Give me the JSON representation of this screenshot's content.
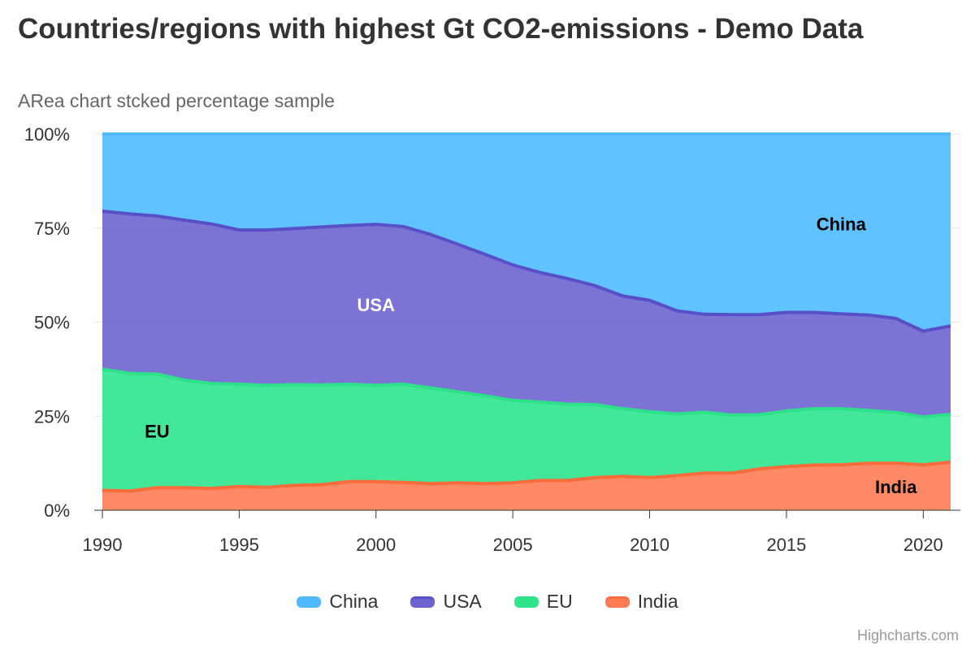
{
  "title": "Countries/regions with highest Gt CO2-emissions - Demo Data",
  "subtitle": "ARea chart stcked percentage sample",
  "credits": "Highcharts.com",
  "chart_data": {
    "type": "area",
    "stacking": "percent",
    "title": "Countries/regions with highest Gt CO2-emissions - Demo Data",
    "subtitle": "ARea chart stcked percentage sample",
    "x": [
      1990,
      1991,
      1992,
      1993,
      1994,
      1995,
      1996,
      1997,
      1998,
      1999,
      2000,
      2001,
      2002,
      2003,
      2004,
      2005,
      2006,
      2007,
      2008,
      2009,
      2010,
      2011,
      2012,
      2013,
      2014,
      2015,
      2016,
      2017,
      2018,
      2019,
      2020,
      2021
    ],
    "x_ticks": [
      "1990",
      "1995",
      "2000",
      "2005",
      "2010",
      "2015",
      "2020"
    ],
    "y_ticks": [
      "0%",
      "25%",
      "50%",
      "75%",
      "100%"
    ],
    "ylim": [
      0,
      100
    ],
    "grid": true,
    "legend_position": "bottom-center",
    "series": [
      {
        "name": "China",
        "color": "#4fbbfe",
        "line_color": "#4fbbfe",
        "values": [
          20.5,
          21.2,
          21.8,
          22.9,
          23.9,
          25.5,
          25.5,
          25.1,
          24.7,
          24.3,
          24.0,
          24.6,
          26.7,
          29.3,
          32.0,
          34.8,
          36.8,
          38.4,
          40.3,
          43.0,
          44.2,
          47.0,
          47.9,
          48.0,
          48.0,
          47.4,
          47.4,
          47.8,
          48.1,
          49.0,
          52.4,
          51.0
        ]
      },
      {
        "name": "USA",
        "color": "#6f64cf",
        "line_color": "#5650c9",
        "values": [
          42.0,
          42.4,
          42.0,
          42.5,
          42.4,
          41.0,
          41.3,
          41.5,
          42.0,
          42.2,
          42.8,
          41.9,
          40.8,
          39.2,
          37.6,
          36.0,
          34.4,
          33.4,
          31.6,
          30.0,
          29.6,
          27.4,
          26.0,
          26.7,
          26.6,
          26.2,
          25.6,
          25.2,
          25.4,
          25.0,
          22.8,
          23.5
        ]
      },
      {
        "name": "EU",
        "color": "#2ee58c",
        "line_color": "#2de08a",
        "values": [
          32.2,
          31.3,
          30.2,
          28.6,
          27.9,
          27.2,
          27.1,
          26.8,
          26.5,
          25.9,
          25.6,
          26.1,
          25.4,
          24.2,
          23.3,
          21.9,
          20.9,
          20.3,
          19.4,
          18.0,
          17.5,
          16.4,
          16.2,
          15.4,
          14.4,
          14.8,
          15.0,
          14.9,
          14.0,
          13.5,
          12.7,
          12.7
        ]
      },
      {
        "name": "India",
        "color": "#ff7b54",
        "line_color": "#fa6c3c",
        "values": [
          5.3,
          5.1,
          6.0,
          6.0,
          5.8,
          6.3,
          6.1,
          6.6,
          6.8,
          7.6,
          7.6,
          7.4,
          7.1,
          7.3,
          7.1,
          7.3,
          7.9,
          7.9,
          8.7,
          9.0,
          8.7,
          9.2,
          9.9,
          9.9,
          11.0,
          11.6,
          12.0,
          12.1,
          12.5,
          12.5,
          12.1,
          12.8
        ]
      }
    ],
    "annotations": [
      {
        "text": "China",
        "series": "China",
        "color": "#000000"
      },
      {
        "text": "USA",
        "series": "USA",
        "color": "#ffffff"
      },
      {
        "text": "EU",
        "series": "EU",
        "color": "#000000"
      },
      {
        "text": "India",
        "series": "India",
        "color": "#000000"
      }
    ]
  }
}
